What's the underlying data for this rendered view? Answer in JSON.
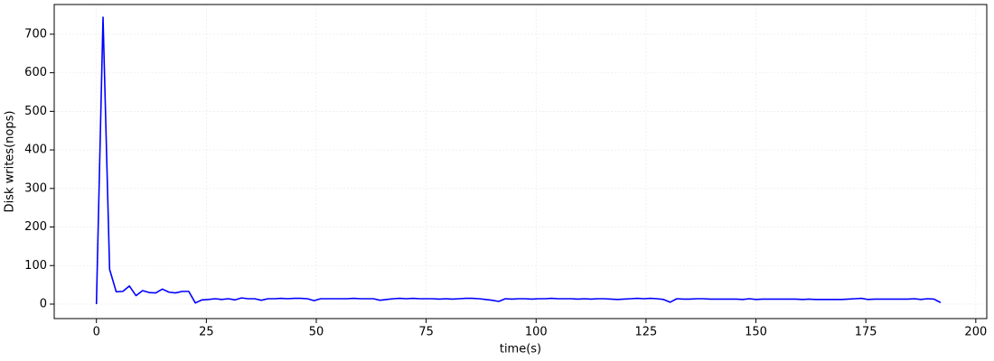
{
  "chart_data": {
    "type": "line",
    "xlabel": "time(s)",
    "ylabel": "Disk writes(nops)",
    "x": [
      0,
      1.5,
      3,
      4.5,
      6,
      7.5,
      9,
      10.5,
      12,
      13.5,
      15,
      16.5,
      18,
      19.5,
      21,
      22.5,
      24,
      25.5,
      27,
      28.5,
      30,
      31.5,
      33,
      34.5,
      36,
      37.5,
      39,
      40.5,
      42,
      43.5,
      45,
      46.5,
      48,
      49.5,
      51,
      52.5,
      54,
      55.5,
      57,
      58.5,
      60,
      61.5,
      63,
      64.5,
      66,
      67.5,
      69,
      70.5,
      72,
      73.5,
      75,
      76.5,
      78,
      79.5,
      81,
      82.5,
      84,
      85.5,
      87,
      88.5,
      90,
      91.5,
      93,
      94.5,
      96,
      97.5,
      99,
      100.5,
      102,
      103.5,
      105,
      106.5,
      108,
      109.5,
      111,
      112.5,
      114,
      115.5,
      117,
      118.5,
      120,
      121.5,
      123,
      124.5,
      126,
      127.5,
      129,
      130.5,
      132,
      133.5,
      135,
      136.5,
      138,
      139.5,
      141,
      142.5,
      144,
      145.5,
      147,
      148.5,
      150,
      151.5,
      153,
      154.5,
      156,
      157.5,
      159,
      160.5,
      162,
      163.5,
      165,
      166.5,
      168,
      169.5,
      171,
      172.5,
      174,
      175.5,
      177,
      178.5,
      180,
      181.5,
      183,
      184.5,
      186,
      187.5,
      189,
      190.5,
      192
    ],
    "series": [
      {
        "name": "Disk writes",
        "color": "#0000ff",
        "values": [
          0,
          744,
          90,
          32,
          33,
          47,
          22,
          35,
          30,
          29,
          39,
          31,
          29,
          33,
          33,
          3,
          11,
          12,
          14,
          12,
          14,
          11,
          16,
          14,
          14,
          10,
          14,
          14,
          15,
          14,
          15,
          15,
          14,
          9,
          14,
          14,
          14,
          14,
          14,
          15,
          14,
          14,
          14,
          10,
          12,
          14,
          15,
          14,
          15,
          14,
          14,
          14,
          13,
          14,
          13,
          14,
          15,
          15,
          14,
          12,
          10,
          7,
          14,
          13,
          14,
          14,
          13,
          14,
          14,
          15,
          14,
          14,
          14,
          13,
          14,
          13,
          14,
          14,
          13,
          12,
          13,
          14,
          15,
          14,
          15,
          14,
          12,
          5,
          14,
          13,
          13,
          14,
          14,
          13,
          13,
          13,
          13,
          13,
          12,
          14,
          12,
          13,
          13,
          13,
          13,
          13,
          13,
          12,
          13,
          12,
          12,
          12,
          12,
          12,
          13,
          14,
          15,
          12,
          13,
          13,
          13,
          13,
          13,
          13,
          14,
          12,
          14,
          13,
          4
        ]
      }
    ],
    "xlim": [
      -9.6,
      202.5
    ],
    "ylim": [
      -37.5,
      777
    ],
    "xticks": [
      0,
      25,
      50,
      75,
      100,
      125,
      150,
      175,
      200
    ],
    "yticks": [
      0,
      100,
      200,
      300,
      400,
      500,
      600,
      700
    ],
    "grid": true
  }
}
